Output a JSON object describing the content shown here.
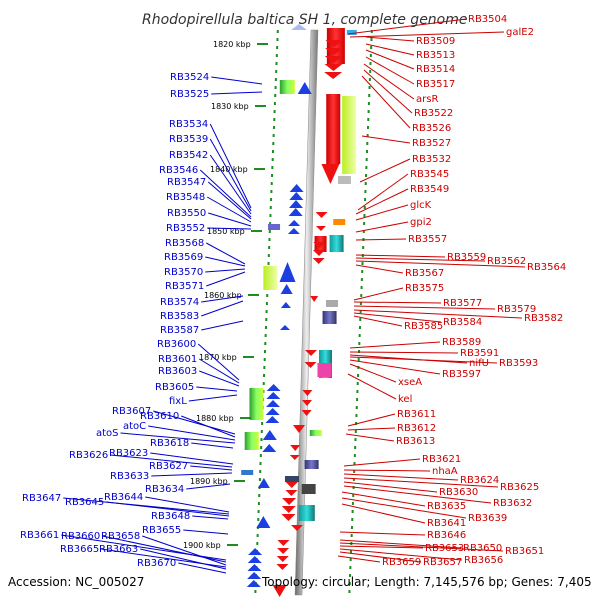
{
  "title": "Rhodopirellula baltica SH 1, complete genome",
  "accession": "Accession: NC_005027",
  "summary": "Topology: circular; Length: 7,145,576 bp; Genes: 7,405",
  "kbp_ticks": [
    "1820 kbp",
    "1830 kbp",
    "1840 kbp",
    "1850 kbp",
    "1860 kbp",
    "1870 kbp",
    "1880 kbp",
    "1890 kbp",
    "1900 kbp"
  ],
  "left_labels": [
    "RB3524",
    "RB3525",
    "RB3534",
    "RB3539",
    "RB3542",
    "RB3546",
    "RB3547",
    "RB3548",
    "RB3550",
    "RB3552",
    "RB3568",
    "RB3569",
    "RB3570",
    "RB3571",
    "RB3574",
    "RB3583",
    "RB3587",
    "RB3600",
    "RB3601",
    "RB3603",
    "RB3605",
    "fixL",
    "RB3607",
    "RB3610",
    "atoC",
    "atoS",
    "RB3618",
    "RB3623",
    "RB3626",
    "RB3627",
    "RB3633",
    "RB3634",
    "RB3644",
    "RB3647",
    "RB3645",
    "RB3648",
    "RB3655",
    "RB3661",
    "RB3660",
    "RB3658",
    "RB3665",
    "RB3663",
    "RB3670"
  ],
  "right_labels": [
    "RB3504",
    "galE2",
    "RB3509",
    "RB3513",
    "RB3514",
    "RB3517",
    "arsR",
    "RB3522",
    "RB3526",
    "RB3527",
    "RB3532",
    "RB3545",
    "RB3549",
    "glcK",
    "gpi2",
    "RB3557",
    "RB3559",
    "RB3562",
    "RB3564",
    "RB3567",
    "RB3575",
    "RB3577",
    "RB3579",
    "RB3582",
    "RB3584",
    "RB3585",
    "RB3589",
    "RB3591",
    "nifU",
    "RB3593",
    "RB3597",
    "xseA",
    "kel",
    "RB3611",
    "RB3612",
    "RB3613",
    "RB3621",
    "nhaA",
    "RB3624",
    "RB3625",
    "RB3630",
    "RB3632",
    "RB3635",
    "RB3639",
    "RB3641",
    "RB3646",
    "RB3650",
    "RB3651",
    "RB3653",
    "RB3656",
    "RB3657",
    "RB3659"
  ],
  "colors": {
    "forward_strand": "#1b3fe0",
    "reverse_strand": "#ee1111",
    "tick": "#228b22",
    "left_label": "#0000cc",
    "right_label": "#cc0000",
    "axis": "#999999"
  }
}
